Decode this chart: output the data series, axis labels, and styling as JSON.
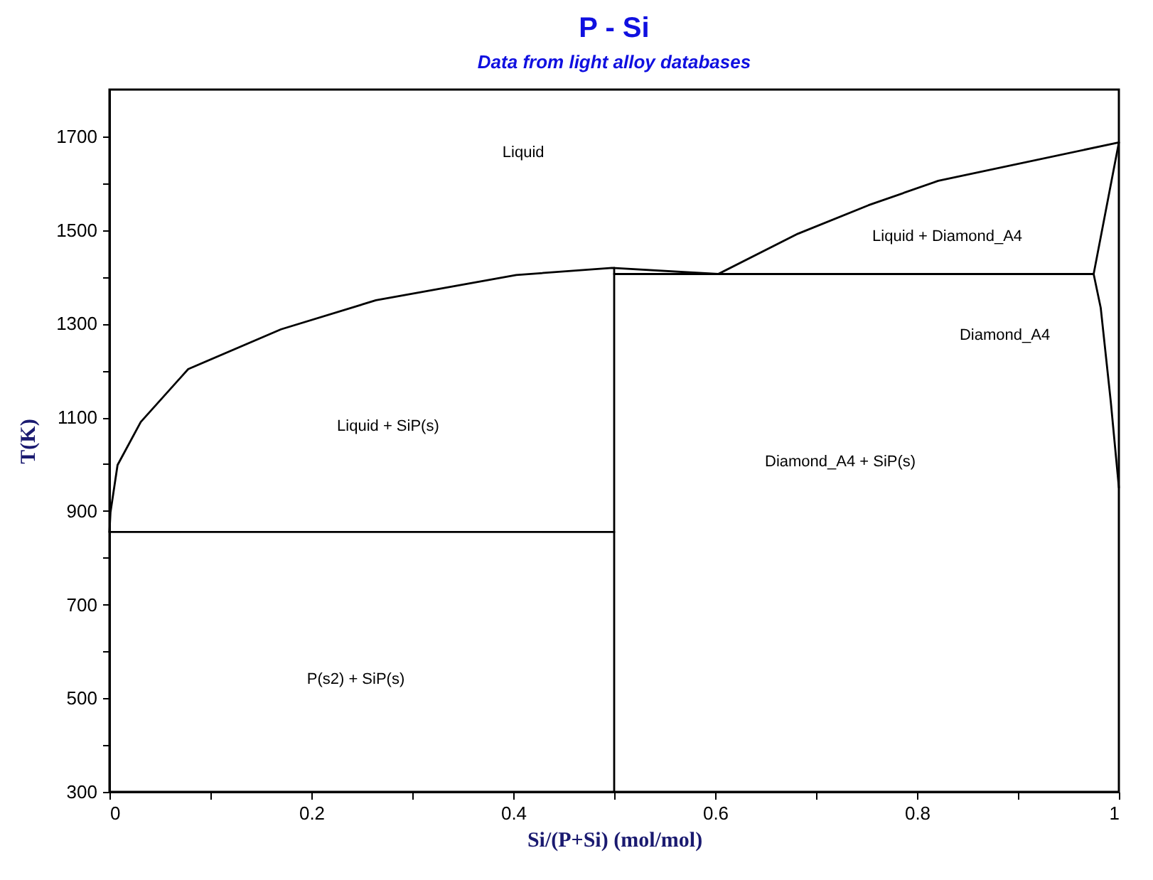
{
  "chart_data": {
    "type": "line",
    "title": "P - Si",
    "subtitle": "Data from light alloy databases",
    "xlabel": "Si/(P+Si) (mol/mol)",
    "ylabel": "T(K)",
    "xlim": [
      0,
      1
    ],
    "ylim": [
      300,
      1800
    ],
    "xticks": [
      0,
      {
        "value": 0.1,
        "label": null
      },
      0.2,
      {
        "value": 0.3,
        "label": null
      },
      0.4,
      {
        "value": 0.5,
        "label": null
      },
      0.6,
      {
        "value": 0.7,
        "label": null
      },
      0.8,
      {
        "value": 0.9,
        "label": null
      },
      1
    ],
    "yticks": [
      300,
      {
        "value": 400,
        "label": null
      },
      500,
      {
        "value": 600,
        "label": null
      },
      700,
      {
        "value": 800,
        "label": null
      },
      900,
      {
        "value": 1000,
        "label": null
      },
      1100,
      {
        "value": 1200,
        "label": null
      },
      1300,
      {
        "value": 1400,
        "label": null
      },
      1500,
      {
        "value": 1600,
        "label": null
      },
      1700
    ],
    "grid": false,
    "line_style": "solid",
    "series": [
      {
        "color": "#000000",
        "x": [
          0,
          0.001,
          0.008,
          0.031,
          0.078,
          0.17,
          0.264,
          0.357,
          0.403,
          0.498,
          0.603
        ],
        "values": [
          855,
          897,
          998,
          1090,
          1203,
          1288,
          1350,
          1386,
          1404,
          1419,
          1406
        ]
      },
      {
        "color": "#000000",
        "x": [
          0.603,
          0.682,
          0.752,
          0.821,
          1
        ],
        "values": [
          1406,
          1492,
          1553,
          1605,
          1687
        ]
      },
      {
        "color": "#000000",
        "x": [
          0,
          0.5
        ],
        "values": [
          855,
          855
        ]
      },
      {
        "color": "#000000",
        "x": [
          0.5,
          0.5
        ],
        "values": [
          300,
          1419
        ]
      },
      {
        "color": "#000000",
        "x": [
          0.5,
          0.975
        ],
        "values": [
          1406,
          1406
        ]
      },
      {
        "color": "#000000",
        "x": [
          1,
          0.975,
          0.982,
          0.992,
          1
        ],
        "values": [
          1687,
          1406,
          1334,
          1133,
          950
        ]
      }
    ],
    "annotations": [
      "Liquid",
      "Liquid + SiP(s)",
      "P(s2) + SiP(s)",
      "Diamond_A4 + SiP(s)",
      "Liquid + Diamond_A4",
      "Diamond_A4"
    ]
  }
}
